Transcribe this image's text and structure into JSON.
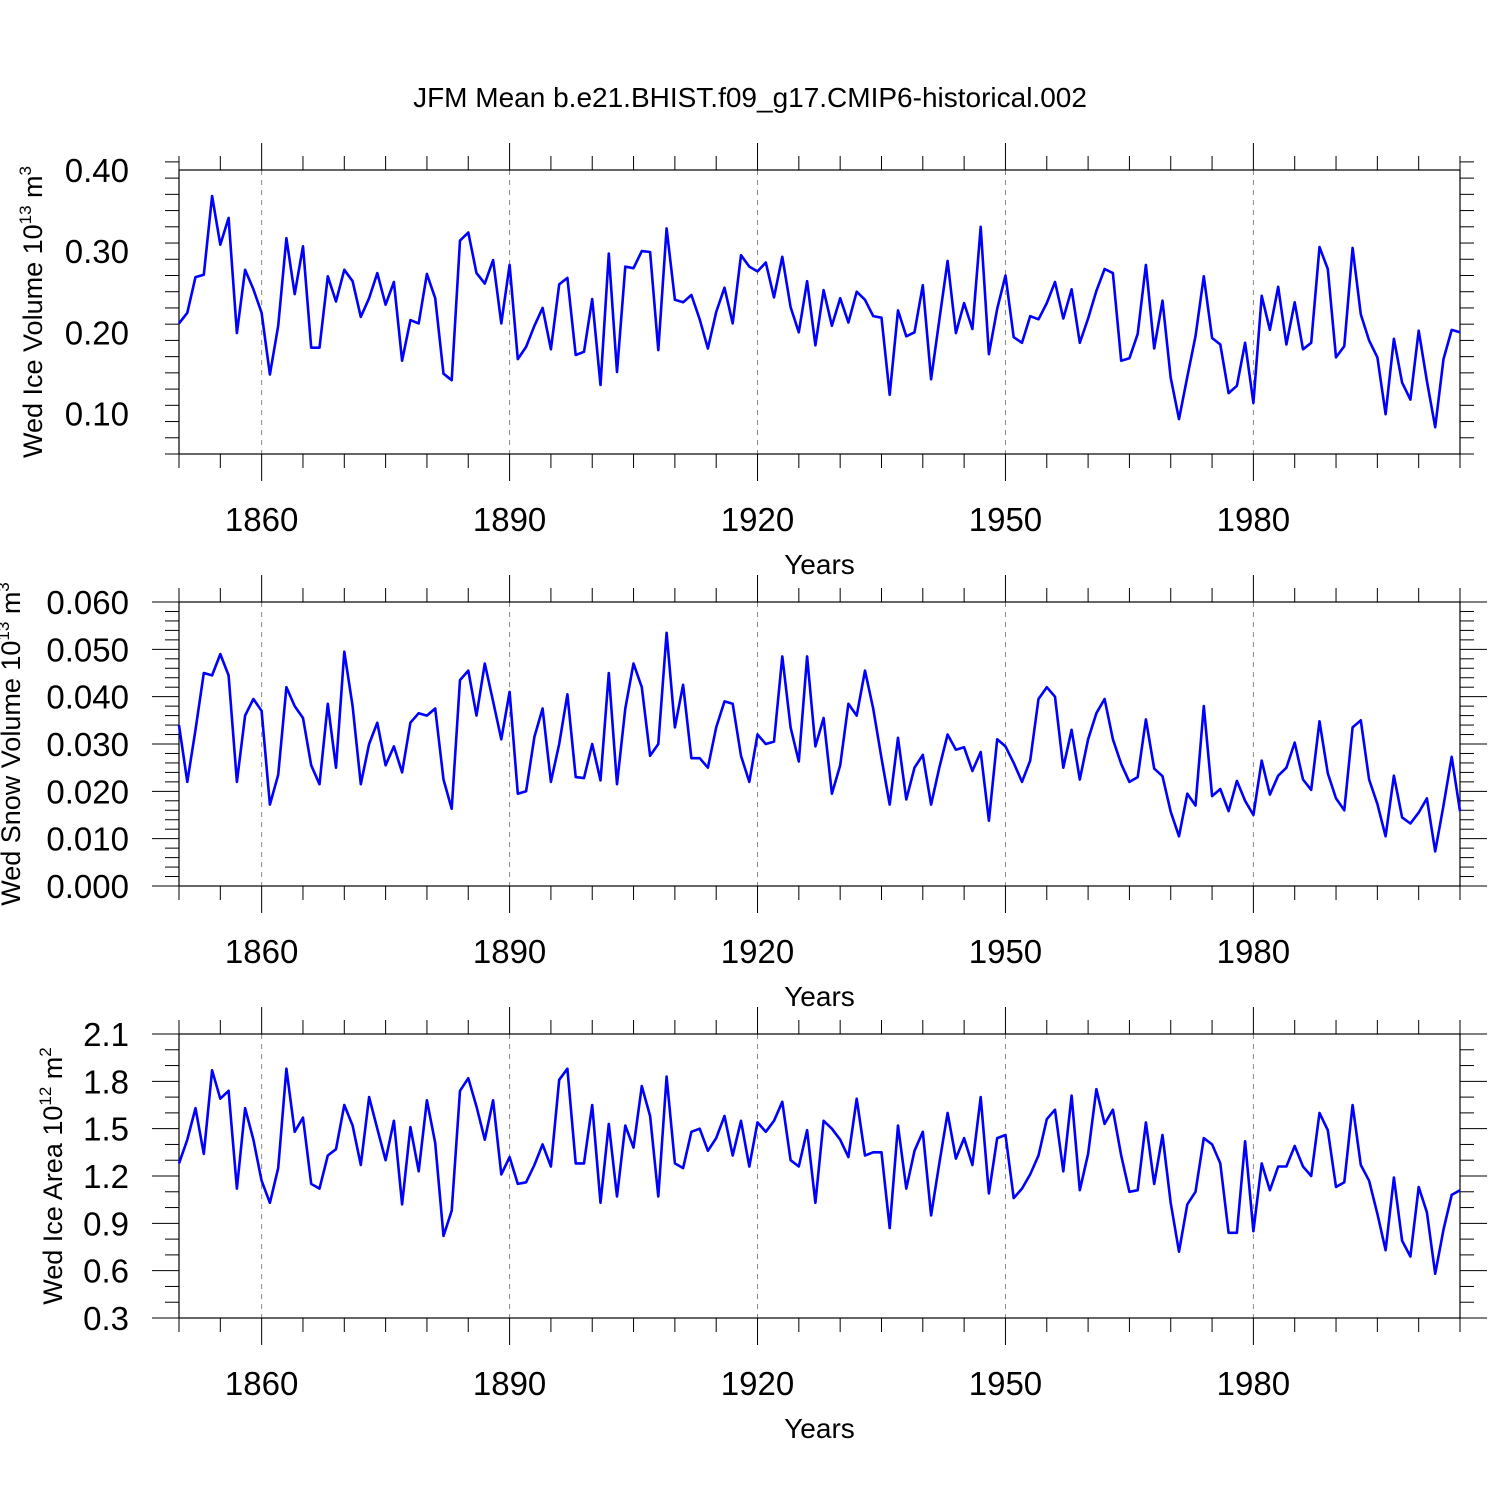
{
  "title": "JFM Mean b.e21.BHIST.f09_g17.CMIP6-historical.002",
  "colors": {
    "series": "#0000ff",
    "axis": "#000000",
    "grid": "#888888"
  },
  "chart_data": [
    {
      "type": "line",
      "title": "JFM Mean b.e21.BHIST.f09_g17.CMIP6-historical.002",
      "xlabel": "Years",
      "ylabel": {
        "main": "Wed Ice Volume 10",
        "exp": "13",
        "unit": " m",
        "unit_exp": "3"
      },
      "xlim": [
        1850,
        2005
      ],
      "ylim": [
        0.05,
        0.4
      ],
      "yticks": [
        0.1,
        0.2,
        0.3,
        0.4
      ],
      "ytick_labels": [
        "0.10",
        "0.20",
        "0.30",
        "0.40"
      ],
      "yminor_step": 0.02,
      "xticks": [
        1860,
        1890,
        1920,
        1950,
        1980
      ],
      "xtick_labels": [
        "1860",
        "1890",
        "1920",
        "1950",
        "1980"
      ],
      "grid": "vertical dashed at major x ticks",
      "x_start": 1850,
      "series": [
        {
          "name": "Wed Ice Volume",
          "color": "#0000ff",
          "values": [
            0.211,
            0.224,
            0.268,
            0.271,
            0.368,
            0.308,
            0.341,
            0.199,
            0.277,
            0.253,
            0.224,
            0.148,
            0.208,
            0.316,
            0.247,
            0.306,
            0.181,
            0.181,
            0.269,
            0.238,
            0.277,
            0.263,
            0.219,
            0.242,
            0.273,
            0.234,
            0.262,
            0.165,
            0.215,
            0.211,
            0.272,
            0.242,
            0.149,
            0.141,
            0.313,
            0.323,
            0.273,
            0.26,
            0.289,
            0.211,
            0.283,
            0.167,
            0.182,
            0.208,
            0.23,
            0.179,
            0.259,
            0.267,
            0.172,
            0.176,
            0.241,
            0.135,
            0.297,
            0.151,
            0.281,
            0.279,
            0.3,
            0.299,
            0.178,
            0.328,
            0.24,
            0.237,
            0.246,
            0.216,
            0.18,
            0.225,
            0.255,
            0.211,
            0.295,
            0.281,
            0.275,
            0.286,
            0.243,
            0.293,
            0.231,
            0.2,
            0.263,
            0.184,
            0.252,
            0.208,
            0.242,
            0.212,
            0.25,
            0.24,
            0.22,
            0.218,
            0.123,
            0.227,
            0.195,
            0.2,
            0.258,
            0.142,
            0.215,
            0.288,
            0.199,
            0.236,
            0.204,
            0.33,
            0.173,
            0.229,
            0.27,
            0.194,
            0.187,
            0.22,
            0.216,
            0.236,
            0.262,
            0.217,
            0.253,
            0.187,
            0.217,
            0.251,
            0.278,
            0.273,
            0.165,
            0.168,
            0.198,
            0.283,
            0.18,
            0.239,
            0.144,
            0.093,
            0.145,
            0.195,
            0.269,
            0.193,
            0.185,
            0.125,
            0.134,
            0.187,
            0.113,
            0.245,
            0.203,
            0.256,
            0.185,
            0.237,
            0.179,
            0.187,
            0.305,
            0.278,
            0.169,
            0.183,
            0.304,
            0.222,
            0.19,
            0.169,
            0.099,
            0.192,
            0.138,
            0.117,
            0.202,
            0.14,
            0.083,
            0.167,
            0.203,
            0.2
          ]
        }
      ]
    },
    {
      "type": "line",
      "xlabel": "Years",
      "ylabel": {
        "main": "Wed Snow Volume 10",
        "exp": "13",
        "unit": " m",
        "unit_exp": "3"
      },
      "xlim": [
        1850,
        2005
      ],
      "ylim": [
        0.0,
        0.06
      ],
      "yticks": [
        0.0,
        0.01,
        0.02,
        0.03,
        0.04,
        0.05,
        0.06
      ],
      "ytick_labels": [
        "0.000",
        "0.010",
        "0.020",
        "0.030",
        "0.040",
        "0.050",
        "0.060"
      ],
      "yminor_step": 0.002,
      "xticks": [
        1860,
        1890,
        1920,
        1950,
        1980
      ],
      "xtick_labels": [
        "1860",
        "1890",
        "1920",
        "1950",
        "1980"
      ],
      "grid": "vertical dashed at major x ticks",
      "x_start": 1850,
      "series": [
        {
          "name": "Wed Snow Volume",
          "color": "#0000ff",
          "values": [
            0.034,
            0.022,
            0.033,
            0.045,
            0.0445,
            0.049,
            0.0445,
            0.022,
            0.036,
            0.0395,
            0.037,
            0.0172,
            0.0235,
            0.042,
            0.038,
            0.0355,
            0.0255,
            0.0215,
            0.0385,
            0.025,
            0.0495,
            0.038,
            0.0215,
            0.03,
            0.0345,
            0.0255,
            0.0295,
            0.024,
            0.0345,
            0.0365,
            0.036,
            0.0375,
            0.0225,
            0.0163,
            0.0435,
            0.0455,
            0.036,
            0.047,
            0.039,
            0.031,
            0.041,
            0.0195,
            0.02,
            0.0315,
            0.0375,
            0.022,
            0.03,
            0.0405,
            0.023,
            0.0228,
            0.03,
            0.0223,
            0.045,
            0.0215,
            0.0375,
            0.047,
            0.042,
            0.0275,
            0.03,
            0.0535,
            0.0335,
            0.0425,
            0.027,
            0.027,
            0.025,
            0.0335,
            0.039,
            0.0385,
            0.0275,
            0.022,
            0.032,
            0.03,
            0.0305,
            0.0485,
            0.0335,
            0.0263,
            0.0485,
            0.0295,
            0.0355,
            0.0195,
            0.0255,
            0.0385,
            0.036,
            0.0455,
            0.0375,
            0.027,
            0.0172,
            0.0313,
            0.0183,
            0.025,
            0.0277,
            0.0172,
            0.025,
            0.032,
            0.0288,
            0.0293,
            0.0243,
            0.0283,
            0.0138,
            0.031,
            0.0295,
            0.026,
            0.022,
            0.0265,
            0.0395,
            0.042,
            0.04,
            0.025,
            0.033,
            0.0225,
            0.031,
            0.0365,
            0.0395,
            0.031,
            0.0258,
            0.022,
            0.023,
            0.0352,
            0.0248,
            0.0232,
            0.0157,
            0.0105,
            0.0195,
            0.017,
            0.038,
            0.019,
            0.0205,
            0.0158,
            0.0222,
            0.018,
            0.015,
            0.0265,
            0.0193,
            0.0233,
            0.025,
            0.0303,
            0.0225,
            0.0203,
            0.0348,
            0.0238,
            0.0185,
            0.016,
            0.0335,
            0.035,
            0.0225,
            0.0173,
            0.0105,
            0.0233,
            0.0145,
            0.0132,
            0.0155,
            0.0185,
            0.0073,
            0.017,
            0.0273,
            0.0158
          ]
        }
      ]
    },
    {
      "type": "line",
      "xlabel": "Years",
      "ylabel": {
        "main": "Wed Ice Area 10",
        "exp": "12",
        "unit": " m",
        "unit_exp": "2"
      },
      "xlim": [
        1850,
        2005
      ],
      "ylim": [
        0.3,
        2.1
      ],
      "yticks": [
        0.3,
        0.6,
        0.9,
        1.2,
        1.5,
        1.8,
        2.1
      ],
      "ytick_labels": [
        "0.3",
        "0.6",
        "0.9",
        "1.2",
        "1.5",
        "1.8",
        "2.1"
      ],
      "yminor_step": 0.1,
      "xticks": [
        1860,
        1890,
        1920,
        1950,
        1980
      ],
      "xtick_labels": [
        "1860",
        "1890",
        "1920",
        "1950",
        "1980"
      ],
      "grid": "vertical dashed at major x ticks",
      "x_start": 1850,
      "series": [
        {
          "name": "Wed Ice Area",
          "color": "#0000ff",
          "values": [
            1.28,
            1.43,
            1.63,
            1.34,
            1.87,
            1.69,
            1.74,
            1.12,
            1.63,
            1.43,
            1.17,
            1.03,
            1.25,
            1.88,
            1.48,
            1.57,
            1.15,
            1.12,
            1.33,
            1.37,
            1.65,
            1.52,
            1.27,
            1.7,
            1.5,
            1.3,
            1.55,
            1.02,
            1.51,
            1.23,
            1.68,
            1.41,
            0.82,
            0.98,
            1.74,
            1.82,
            1.64,
            1.43,
            1.68,
            1.21,
            1.32,
            1.15,
            1.16,
            1.27,
            1.4,
            1.26,
            1.81,
            1.88,
            1.28,
            1.28,
            1.65,
            1.03,
            1.53,
            1.07,
            1.52,
            1.38,
            1.77,
            1.58,
            1.07,
            1.83,
            1.28,
            1.25,
            1.48,
            1.5,
            1.36,
            1.44,
            1.58,
            1.33,
            1.55,
            1.26,
            1.54,
            1.48,
            1.55,
            1.67,
            1.3,
            1.26,
            1.49,
            1.03,
            1.55,
            1.5,
            1.43,
            1.32,
            1.69,
            1.33,
            1.35,
            1.35,
            0.87,
            1.52,
            1.12,
            1.36,
            1.48,
            0.95,
            1.28,
            1.6,
            1.31,
            1.44,
            1.27,
            1.7,
            1.09,
            1.44,
            1.46,
            1.06,
            1.12,
            1.21,
            1.33,
            1.56,
            1.62,
            1.23,
            1.71,
            1.11,
            1.34,
            1.75,
            1.53,
            1.62,
            1.33,
            1.1,
            1.11,
            1.54,
            1.15,
            1.46,
            1.03,
            0.72,
            1.02,
            1.1,
            1.44,
            1.4,
            1.28,
            0.84,
            0.84,
            1.42,
            0.85,
            1.28,
            1.11,
            1.26,
            1.26,
            1.39,
            1.26,
            1.2,
            1.6,
            1.49,
            1.13,
            1.16,
            1.65,
            1.27,
            1.17,
            0.96,
            0.73,
            1.19,
            0.79,
            0.69,
            1.13,
            0.97,
            0.58,
            0.86,
            1.08,
            1.11
          ]
        }
      ]
    }
  ]
}
